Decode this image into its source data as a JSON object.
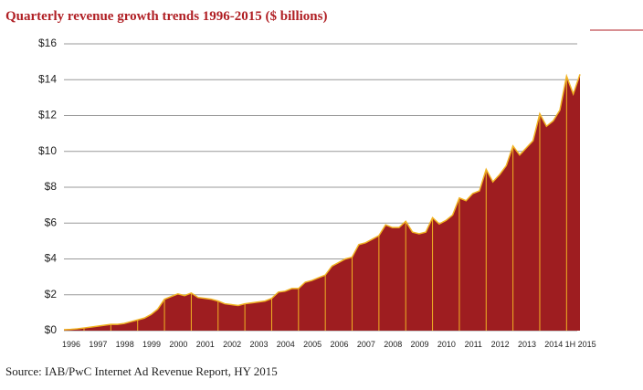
{
  "chart_data": {
    "type": "area",
    "title": "Quarterly revenue growth trends 1996-2015 ($ billions)",
    "source": "Source: IAB/PwC Internet Ad Revenue Report, HY 2015",
    "categories": [
      "1996",
      null,
      null,
      null,
      "1997",
      null,
      null,
      null,
      "1998",
      null,
      null,
      null,
      "1999",
      null,
      null,
      null,
      "2000",
      null,
      null,
      null,
      "2001",
      null,
      null,
      null,
      "2002",
      null,
      null,
      null,
      "2003",
      null,
      null,
      null,
      "2004",
      null,
      null,
      null,
      "2005",
      null,
      null,
      null,
      "2006",
      null,
      null,
      null,
      "2007",
      null,
      null,
      null,
      "2008",
      null,
      null,
      null,
      "2009",
      null,
      null,
      null,
      "2010",
      null,
      null,
      null,
      "2011",
      null,
      null,
      null,
      "2012",
      null,
      null,
      null,
      "2013",
      null,
      null,
      null,
      "2014",
      null,
      null,
      null,
      "1H 2015",
      null
    ],
    "values": [
      0.05,
      0.07,
      0.1,
      0.15,
      0.2,
      0.25,
      0.3,
      0.35,
      0.35,
      0.4,
      0.5,
      0.6,
      0.7,
      0.9,
      1.2,
      1.75,
      1.9,
      2.05,
      1.95,
      2.1,
      1.85,
      1.8,
      1.75,
      1.65,
      1.5,
      1.45,
      1.4,
      1.5,
      1.55,
      1.6,
      1.65,
      1.8,
      2.15,
      2.2,
      2.35,
      2.35,
      2.7,
      2.8,
      2.95,
      3.1,
      3.6,
      3.8,
      4.0,
      4.1,
      4.8,
      4.9,
      5.1,
      5.3,
      5.9,
      5.75,
      5.75,
      6.1,
      5.5,
      5.4,
      5.5,
      6.3,
      5.95,
      6.15,
      6.45,
      7.4,
      7.25,
      7.65,
      7.8,
      9.0,
      8.3,
      8.7,
      9.2,
      10.3,
      9.8,
      10.2,
      10.6,
      12.1,
      11.4,
      11.7,
      12.3,
      14.2,
      13.2,
      14.3
    ],
    "color": "#9e1d20",
    "line_color": "#f0b323",
    "ylim": [
      0,
      16
    ],
    "yticks": [
      {
        "value": 0,
        "label": "$0"
      },
      {
        "value": 2,
        "label": "$2"
      },
      {
        "value": 4,
        "label": "$4"
      },
      {
        "value": 6,
        "label": "$6"
      },
      {
        "value": 8,
        "label": "$8"
      },
      {
        "value": 10,
        "label": "$10"
      },
      {
        "value": 12,
        "label": "$12"
      },
      {
        "value": 14,
        "label": "$14"
      },
      {
        "value": 16,
        "label": "$16"
      }
    ],
    "grid": true
  }
}
